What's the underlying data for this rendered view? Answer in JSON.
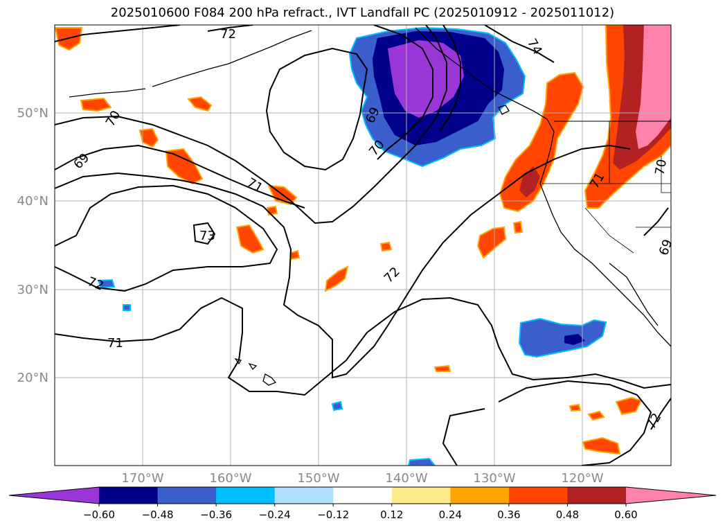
{
  "title": "2025010600 F084 200 hPa refract., IVT Landfall PC (2025010912 - 2025011012)",
  "latitude_labels": [
    "50°N",
    "40°N",
    "30°N",
    "20°N"
  ],
  "longitude_labels": [
    "170°W",
    "160°W",
    "150°W",
    "140°W",
    "130°W",
    "120°W"
  ],
  "contour_labels": [
    "72",
    "70",
    "69",
    "71",
    "73",
    "72",
    "71",
    "69",
    "70",
    "74",
    "71",
    "70",
    "72",
    "69",
    "72"
  ],
  "colorbar": {
    "ticks": [
      "−0.60",
      "−0.48",
      "−0.36",
      "−0.24",
      "−0.12",
      "0.12",
      "0.24",
      "0.36",
      "0.48",
      "0.60"
    ],
    "colors": [
      "#9a35d8",
      "#00008b",
      "#3a5fcd",
      "#00bfff",
      "#b0e2ff",
      "#ffffff",
      "#ffeb8a",
      "#ffa500",
      "#ff4500",
      "#b22222",
      "#ff82ab"
    ],
    "extend": "both"
  },
  "colors": {
    "neg_strong": "#9a35d8",
    "neg_navy": "#00008b",
    "neg_blue": "#3a5fcd",
    "neg_sky": "#00bfff",
    "neg_light": "#b0e2ff",
    "pos_yellow": "#ffeb8a",
    "pos_orange": "#ffa500",
    "pos_red": "#ff4500",
    "pos_brick": "#b22222",
    "pos_pink": "#ff82ab",
    "gridline": "#b0b0b0",
    "coastline": "#000000"
  }
}
